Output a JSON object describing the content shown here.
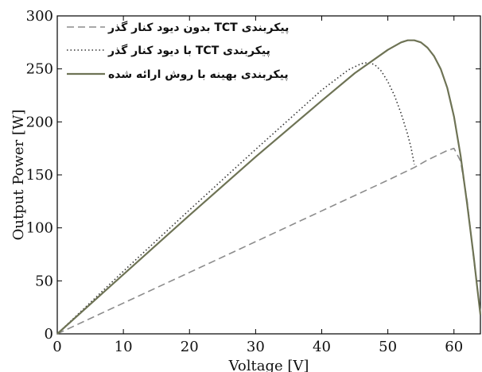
{
  "chart_data": {
    "type": "line",
    "xlabel": "Voltage [V]",
    "ylabel": "Output Power [W]",
    "xlim": [
      0,
      64
    ],
    "ylim": [
      0,
      300
    ],
    "grid": false,
    "legend_position": "top-left",
    "x_ticks": [
      0,
      10,
      20,
      30,
      40,
      50,
      60
    ],
    "y_ticks": [
      0,
      50,
      100,
      150,
      200,
      250,
      300
    ],
    "series": [
      {
        "name": "پیکربندی TCT بدون دیود کنار گذر",
        "style": "dashed",
        "color": "#8c8c8c",
        "x": [
          0,
          10,
          20,
          30,
          40,
          50,
          54,
          56,
          58,
          59,
          60,
          61,
          62,
          63,
          64
        ],
        "y": [
          0,
          29,
          58,
          87,
          116,
          145,
          157,
          164,
          170,
          173,
          175,
          163,
          125,
          70,
          20
        ]
      },
      {
        "name": "پیکربندی TCT با دیود کنار گذر",
        "style": "dotted",
        "color": "#333333",
        "x": [
          0,
          10,
          20,
          30,
          40,
          44,
          46,
          47,
          48,
          49,
          50,
          51,
          52,
          53,
          53.5,
          54
        ],
        "y": [
          0,
          59,
          117,
          174,
          230,
          249,
          255,
          256,
          254,
          248,
          238,
          225,
          208,
          188,
          176,
          160
        ]
      },
      {
        "name": "پیکربندی بهینه با روش ارائه شده",
        "style": "solid",
        "color": "#6e7355",
        "x": [
          0,
          10,
          20,
          30,
          40,
          45,
          50,
          52,
          53,
          54,
          55,
          56,
          57,
          58,
          59,
          60,
          61,
          62,
          63,
          63.5,
          64
        ],
        "y": [
          0,
          56,
          112,
          167,
          220,
          246,
          268,
          275,
          277,
          277,
          275,
          270,
          262,
          250,
          232,
          205,
          168,
          122,
          72,
          45,
          18
        ]
      }
    ]
  }
}
